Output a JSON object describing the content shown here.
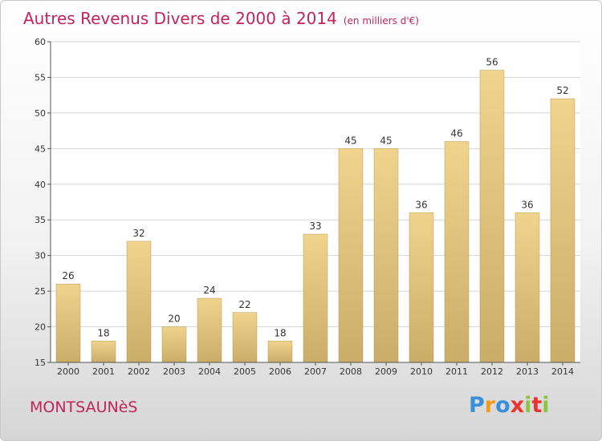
{
  "header": {
    "title": "Autres Revenus Divers de 2000 à 2014",
    "subtitle": "(en milliers d'€)"
  },
  "footer": {
    "city": "MONTSAUNèS",
    "logo_letters": [
      "P",
      "r",
      "o",
      "x",
      "i",
      "t",
      "i"
    ],
    "logo_colors": [
      "#3a8fd8",
      "#f39a1b",
      "#3a8fd8",
      "#e8332f",
      "#8cc63f",
      "#e8332f",
      "#8cc63f"
    ]
  },
  "chart_data": {
    "type": "bar",
    "categories": [
      "2000",
      "2001",
      "2002",
      "2003",
      "2004",
      "2005",
      "2006",
      "2007",
      "2008",
      "2009",
      "2010",
      "2011",
      "2012",
      "2013",
      "2014"
    ],
    "values": [
      26,
      18,
      32,
      20,
      24,
      22,
      18,
      33,
      45,
      45,
      36,
      46,
      56,
      36,
      52
    ],
    "title": "Autres Revenus Divers de 2000 à 2014",
    "subtitle": "(en milliers d'€)",
    "ylim": [
      15,
      60
    ],
    "yticks": [
      15,
      20,
      25,
      30,
      35,
      40,
      45,
      50,
      55,
      60
    ],
    "grid": true,
    "bar_color": "#f0d48e",
    "bar_color_dark": "#c9ad68"
  }
}
